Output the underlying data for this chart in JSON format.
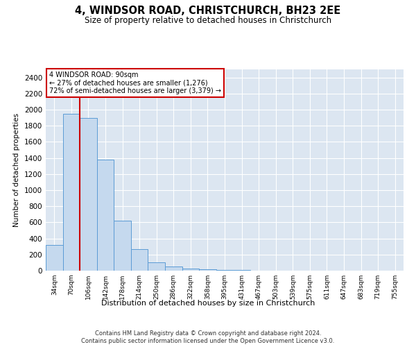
{
  "title": "4, WINDSOR ROAD, CHRISTCHURCH, BH23 2EE",
  "subtitle": "Size of property relative to detached houses in Christchurch",
  "xlabel": "Distribution of detached houses by size in Christchurch",
  "ylabel": "Number of detached properties",
  "footnote1": "Contains HM Land Registry data © Crown copyright and database right 2024.",
  "footnote2": "Contains public sector information licensed under the Open Government Licence v3.0.",
  "categories": [
    "34sqm",
    "70sqm",
    "106sqm",
    "142sqm",
    "178sqm",
    "214sqm",
    "250sqm",
    "286sqm",
    "322sqm",
    "358sqm",
    "395sqm",
    "431sqm",
    "467sqm",
    "503sqm",
    "539sqm",
    "575sqm",
    "611sqm",
    "647sqm",
    "683sqm",
    "719sqm",
    "755sqm"
  ],
  "values": [
    320,
    1950,
    1900,
    1380,
    620,
    270,
    100,
    55,
    30,
    18,
    10,
    5,
    3,
    2,
    1,
    1,
    0,
    0,
    0,
    0,
    0
  ],
  "bar_color": "#c5d9ee",
  "bar_edge_color": "#5b9bd5",
  "ylim": [
    0,
    2500
  ],
  "yticks": [
    0,
    200,
    400,
    600,
    800,
    1000,
    1200,
    1400,
    1600,
    1800,
    2000,
    2200,
    2400
  ],
  "property_label": "4 WINDSOR ROAD: 90sqm",
  "annotation_line1": "← 27% of detached houses are smaller (1,276)",
  "annotation_line2": "72% of semi-detached houses are larger (3,379) →",
  "vline_color": "#cc0000",
  "vline_x": 1.5,
  "bg_color": "#dce6f1"
}
